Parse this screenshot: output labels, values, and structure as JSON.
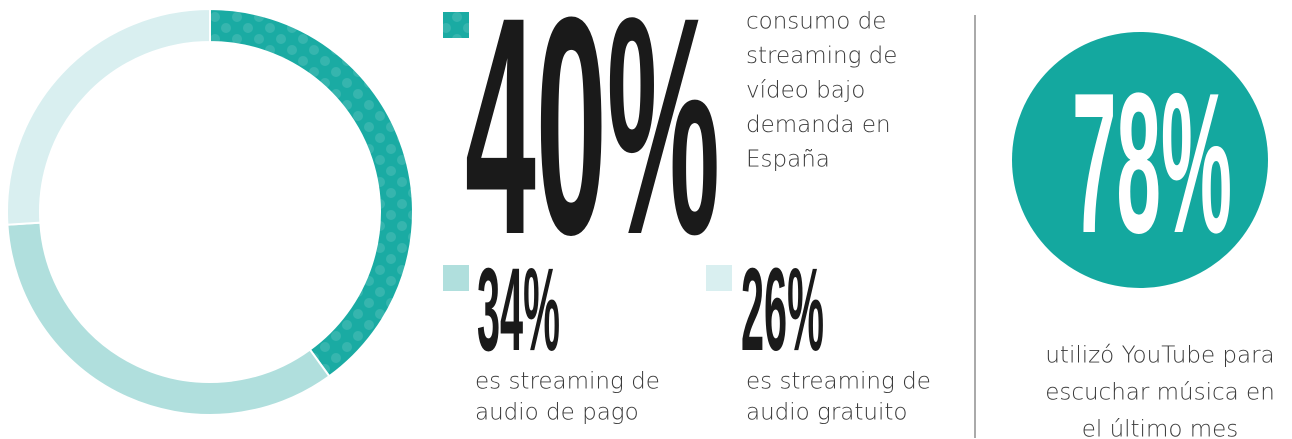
{
  "chart_data": {
    "type": "donut",
    "values": [
      40,
      34,
      26
    ],
    "value_labels": [
      "40%",
      "34%",
      "26%"
    ],
    "categories": [
      [
        "consumo de",
        "streaming de",
        "vídeo bajo",
        "demanda en",
        "España"
      ],
      [
        "es streaming de",
        "audio de pago"
      ],
      [
        "es streaming de",
        "audio gratuito"
      ]
    ],
    "colors": [
      "#1aaba3",
      "#b0dfdd",
      "#d9eff0"
    ]
  },
  "stat": {
    "value": 78,
    "value_label": "78%",
    "color": "#14a89f",
    "text": [
      "utilizó YouTube para",
      "escuchar música en",
      "el último mes"
    ]
  }
}
